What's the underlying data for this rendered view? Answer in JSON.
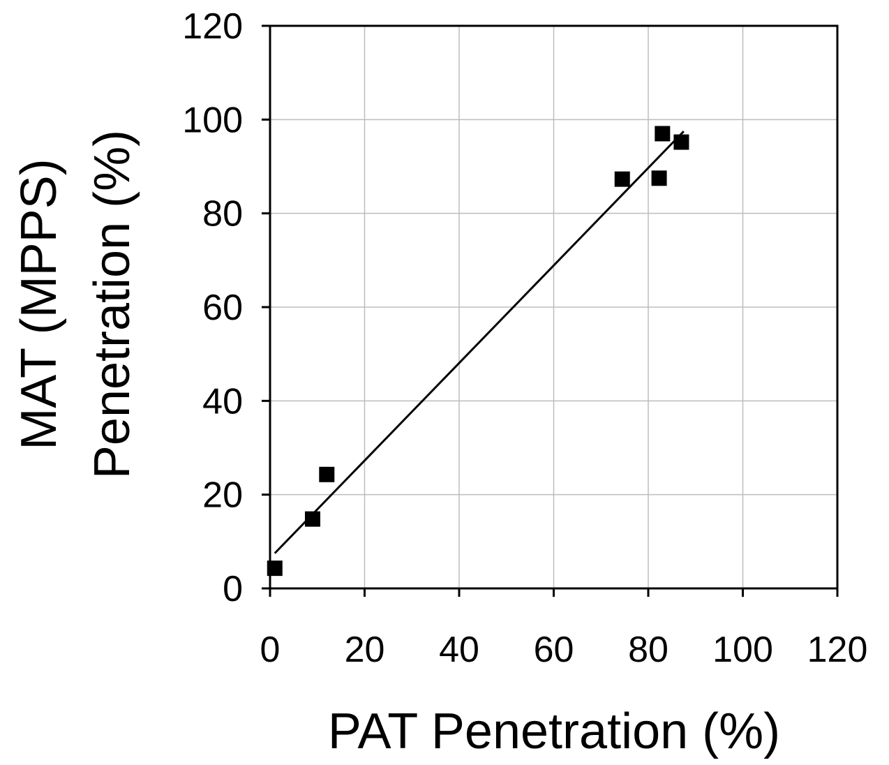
{
  "chart_data": {
    "type": "scatter",
    "xlabel": "PAT Penetration (%)",
    "ylabel_lines": [
      "MAT (MPPS)",
      "Penetration (%)"
    ],
    "xlim": [
      0,
      120
    ],
    "ylim": [
      0,
      120
    ],
    "xticks": [
      "0",
      "20",
      "40",
      "60",
      "80",
      "100",
      "120"
    ],
    "yticks": [
      "0",
      "20",
      "40",
      "60",
      "80",
      "100",
      "120"
    ],
    "grid": true,
    "legend": "none",
    "marker": "square",
    "series": [
      {
        "points": [
          {
            "x": 1,
            "y": 4.3
          },
          {
            "x": 9,
            "y": 14.8
          },
          {
            "x": 12,
            "y": 24.3
          },
          {
            "x": 74.5,
            "y": 87.3
          },
          {
            "x": 82.3,
            "y": 87.5
          },
          {
            "x": 83,
            "y": 97
          },
          {
            "x": 87,
            "y": 95.2
          }
        ]
      }
    ],
    "trendline": {
      "x": [
        1,
        87.5
      ],
      "y": [
        7.5,
        97.5
      ]
    },
    "colors": {
      "marker": "#000000",
      "grid": "#bdbdbd",
      "axis": "#000000",
      "line": "#000000"
    }
  }
}
